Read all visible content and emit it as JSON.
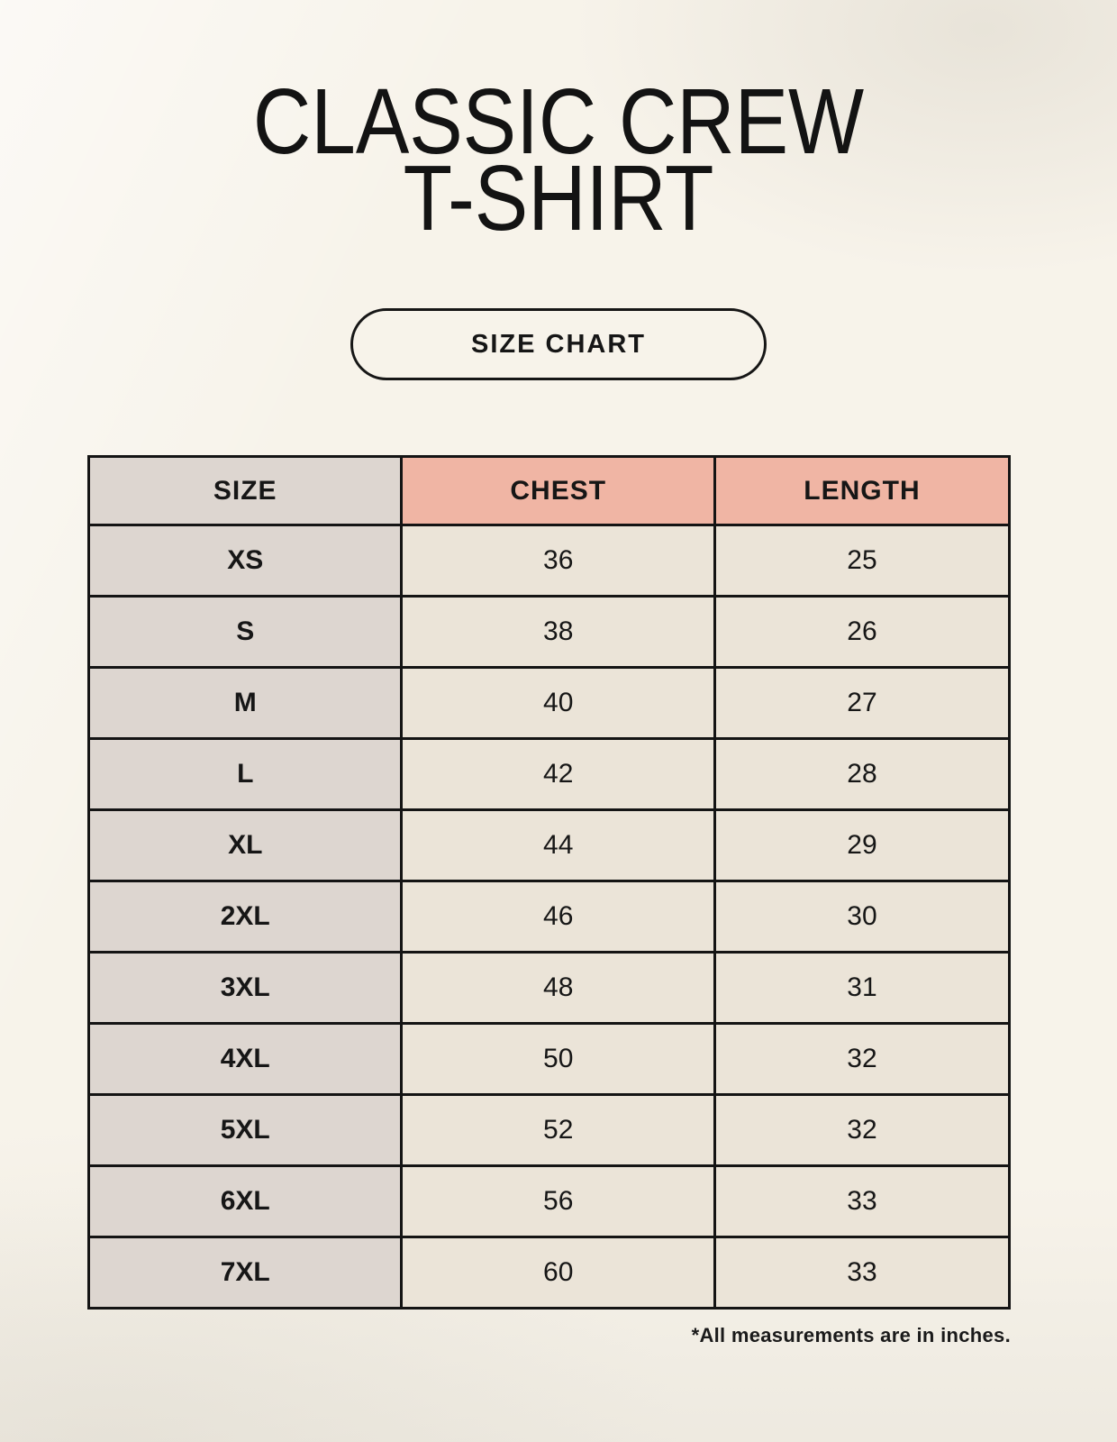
{
  "page": {
    "title_line1": "CLASSIC CREW",
    "title_line2": "T-SHIRT",
    "badge_label": "SIZE CHART",
    "footnote": "*All measurements are in inches."
  },
  "table": {
    "headers": [
      "SIZE",
      "CHEST",
      "LENGTH"
    ],
    "rows": [
      {
        "size": "XS",
        "chest": "36",
        "length": "25"
      },
      {
        "size": "S",
        "chest": "38",
        "length": "26"
      },
      {
        "size": "M",
        "chest": "40",
        "length": "27"
      },
      {
        "size": "L",
        "chest": "42",
        "length": "28"
      },
      {
        "size": "XL",
        "chest": "44",
        "length": "29"
      },
      {
        "size": "2XL",
        "chest": "46",
        "length": "30"
      },
      {
        "size": "3XL",
        "chest": "48",
        "length": "31"
      },
      {
        "size": "4XL",
        "chest": "50",
        "length": "32"
      },
      {
        "size": "5XL",
        "chest": "52",
        "length": "32"
      },
      {
        "size": "6XL",
        "chest": "56",
        "length": "33"
      },
      {
        "size": "7XL",
        "chest": "60",
        "length": "33"
      }
    ]
  },
  "colors": {
    "background": "#f7f3ea",
    "size_column_bg": "#ddd6d0",
    "header_accent_bg": "#f0b5a4",
    "value_cell_bg": "#ebe4d8",
    "border": "#141414",
    "text": "#161616"
  },
  "chart_data": {
    "type": "table",
    "title": "CLASSIC CREW T-SHIRT",
    "subtitle": "SIZE CHART",
    "columns": [
      "SIZE",
      "CHEST",
      "LENGTH"
    ],
    "rows": [
      [
        "XS",
        36,
        25
      ],
      [
        "S",
        38,
        26
      ],
      [
        "M",
        40,
        27
      ],
      [
        "L",
        42,
        28
      ],
      [
        "XL",
        44,
        29
      ],
      [
        "2XL",
        46,
        30
      ],
      [
        "3XL",
        48,
        31
      ],
      [
        "4XL",
        50,
        32
      ],
      [
        "5XL",
        52,
        32
      ],
      [
        "6XL",
        56,
        33
      ],
      [
        "7XL",
        60,
        33
      ]
    ],
    "units": "inches",
    "note": "*All measurements are in inches."
  }
}
